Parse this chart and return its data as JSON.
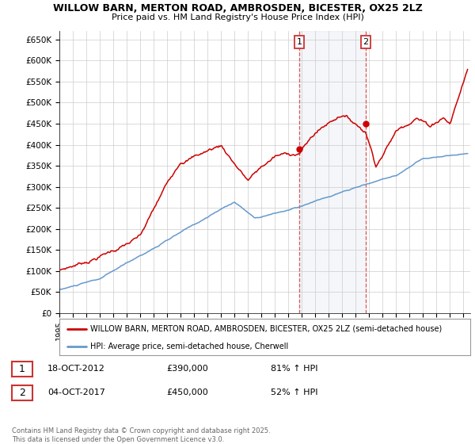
{
  "title": "WILLOW BARN, MERTON ROAD, AMBROSDEN, BICESTER, OX25 2LZ",
  "subtitle": "Price paid vs. HM Land Registry's House Price Index (HPI)",
  "ylim": [
    0,
    670000
  ],
  "yticks": [
    0,
    50000,
    100000,
    150000,
    200000,
    250000,
    300000,
    350000,
    400000,
    450000,
    500000,
    550000,
    600000,
    650000
  ],
  "ytick_labels": [
    "£0",
    "£50K",
    "£100K",
    "£150K",
    "£200K",
    "£250K",
    "£300K",
    "£350K",
    "£400K",
    "£450K",
    "£500K",
    "£550K",
    "£600K",
    "£650K"
  ],
  "xlim_start": 1995.0,
  "xlim_end": 2025.5,
  "red_color": "#cc0000",
  "blue_color": "#6699cc",
  "ann1_x": 2012.8,
  "ann2_x": 2017.75,
  "ann1_y": 390000,
  "ann2_y": 450000,
  "annotation1": {
    "date": "18-OCT-2012",
    "price": 390000,
    "pct": "81% ↑ HPI"
  },
  "annotation2": {
    "date": "04-OCT-2017",
    "price": 450000,
    "pct": "52% ↑ HPI"
  },
  "legend_line1": "WILLOW BARN, MERTON ROAD, AMBROSDEN, BICESTER, OX25 2LZ (semi-detached house)",
  "legend_line2": "HPI: Average price, semi-detached house, Cherwell",
  "footer": "Contains HM Land Registry data © Crown copyright and database right 2025.\nThis data is licensed under the Open Government Licence v3.0."
}
